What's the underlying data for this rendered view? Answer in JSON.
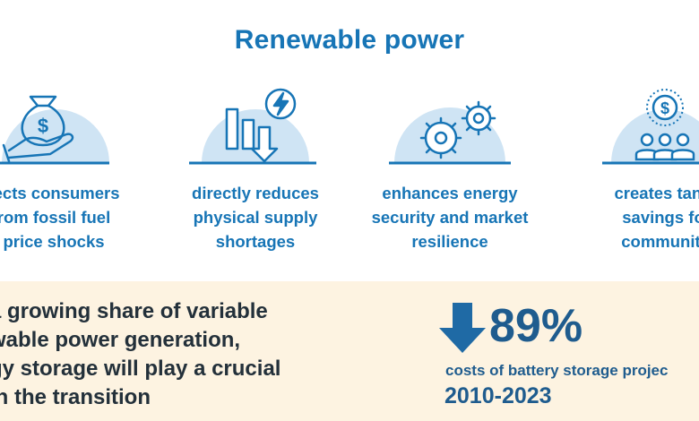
{
  "title": "Renewable power",
  "colors": {
    "accent": "#1775b6",
    "icon_fill": "#cfe4f4",
    "banner_bg": "#fdf3e1",
    "stat_blue": "#1f5c8e"
  },
  "benefits": [
    {
      "icon": "money-bag-hand-icon",
      "label": "tects consumers\nrom fossil fuel\nprice shocks"
    },
    {
      "icon": "bar-chart-down-lightning-icon",
      "label": "directly reduces\nphysical supply\nshortages"
    },
    {
      "icon": "gears-icon",
      "label": "enhances energy\nsecurity and market\nresilience"
    },
    {
      "icon": "community-savings-icon",
      "label": "creates tang\nsavings fo\ncommuniti"
    }
  ],
  "banner": {
    "text": "a growing share of variable\nwable power generation,\ngy storage will play a crucial\nin the transition",
    "stat": {
      "icon": "down-arrow-icon",
      "percent": "89%",
      "caption": "costs of battery storage projec",
      "period": "2010-2023"
    }
  }
}
